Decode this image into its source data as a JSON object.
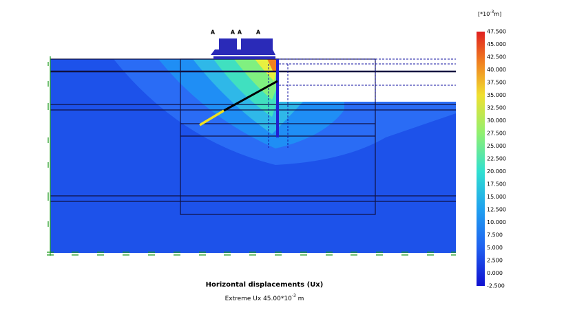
{
  "title": "Horizontal displacements (Ux)",
  "subtitle": {
    "text": "Extreme Ux 45.00*10",
    "exponent": "-3",
    "unit": " m"
  },
  "load_labels": [
    "A",
    "A",
    "A",
    "A"
  ],
  "colorbar": {
    "unit_prefix": "[*10",
    "unit_exponent": "-3",
    "unit_suffix": "m]",
    "labels": [
      "47.500",
      "45.000",
      "42.500",
      "40.000",
      "37.500",
      "35.000",
      "32.500",
      "30.000",
      "27.500",
      "25.000",
      "22.500",
      "20.000",
      "17.500",
      "15.000",
      "12.500",
      "10.000",
      "7.500",
      "5.000",
      "2.500",
      "0.000",
      "-2.500"
    ]
  }
}
